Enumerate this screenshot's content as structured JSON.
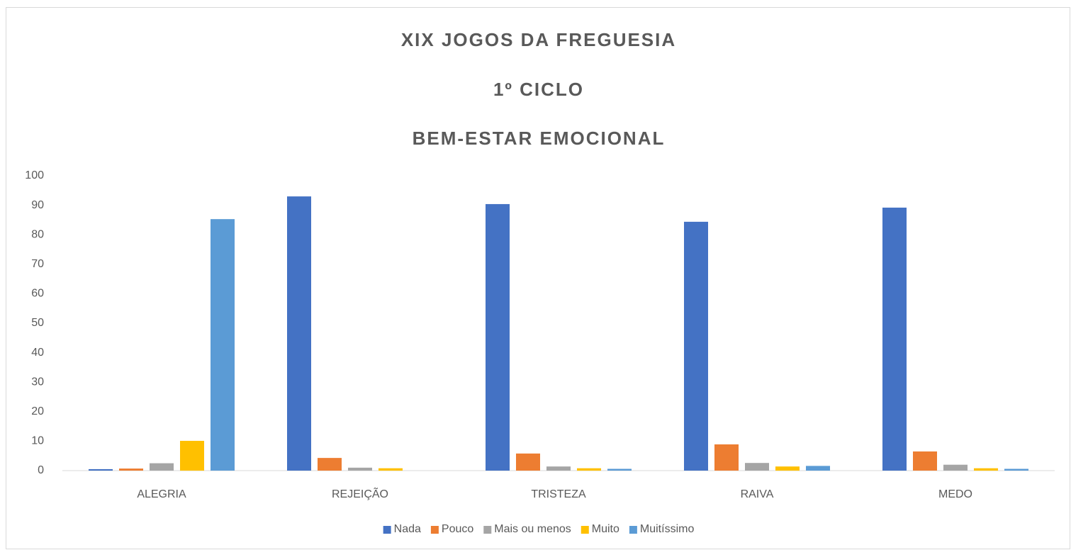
{
  "chart_data": {
    "type": "bar",
    "title": [
      "XIX JOGOS DA FREGUESIA",
      "1º CICLO",
      "BEM-ESTAR EMOCIONAL"
    ],
    "categories": [
      "ALEGRIA",
      "REJEIÇÃO",
      "TRISTEZA",
      "RAIVA",
      "MEDO"
    ],
    "series": [
      {
        "name": "Nada",
        "color": "#4472c4",
        "values": [
          0.5,
          93,
          90.4,
          84.4,
          89.2
        ]
      },
      {
        "name": "Pouco",
        "color": "#ed7d31",
        "values": [
          0.7,
          4.3,
          5.8,
          8.9,
          6.5
        ]
      },
      {
        "name": "Mais ou menos",
        "color": "#a5a5a5",
        "values": [
          2.5,
          1,
          1.4,
          2.6,
          2
        ]
      },
      {
        "name": "Muito",
        "color": "#ffc000",
        "values": [
          10.1,
          0.8,
          0.8,
          1.4,
          0.8
        ]
      },
      {
        "name": "Muitíssimo",
        "color": "#5b9bd5",
        "values": [
          85.3,
          0,
          0.6,
          1.6,
          0.6
        ]
      }
    ],
    "ylim": [
      0,
      100
    ],
    "yticks": [
      0,
      10,
      20,
      30,
      40,
      50,
      60,
      70,
      80,
      90,
      100
    ],
    "grid": false,
    "legend": "bottom"
  }
}
